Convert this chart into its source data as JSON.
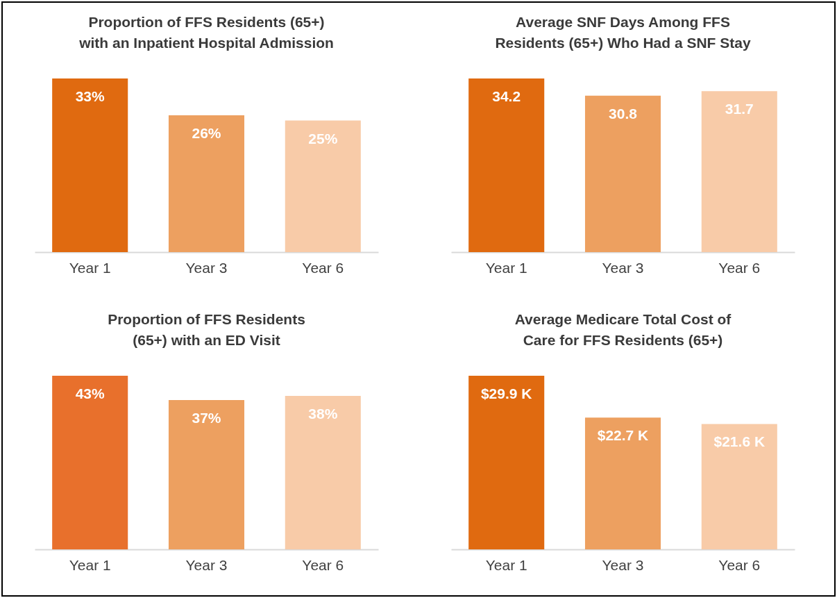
{
  "chart_data": [
    {
      "type": "bar",
      "title": "Proportion of FFS Residents (65+) with an Inpatient Hospital Admission",
      "categories": [
        "Year 1",
        "Year 3",
        "Year 6"
      ],
      "values": [
        33,
        26,
        25
      ],
      "colors": [
        "#e06a10",
        "#eda060",
        "#f8cba8"
      ],
      "value_labels": [
        "33%",
        "26%",
        "25%"
      ],
      "tick_labels": "x"
    },
    {
      "type": "bar",
      "title": "Average SNF Days Among FFS Residents (65+) Who Had a SNF Stay",
      "categories": [
        "Year 1",
        "Year 3",
        "Year 6"
      ],
      "values": [
        34.2,
        30.8,
        31.7
      ],
      "colors": [
        "#e06a10",
        "#eda060",
        "#f8cba8"
      ],
      "data_labels": true,
      "tick_labels": "x"
    },
    {
      "type": "bar",
      "title": "Proportion of FFS Residents (65+) with an ED Visit",
      "categories": [
        "Year 1",
        "Year 3",
        "Year 6"
      ],
      "values": [
        43,
        37,
        38
      ],
      "colors": [
        "#e8702c",
        "#eda060",
        "#f8cba8"
      ],
      "value_labels": [
        "43%",
        "37%",
        "38%"
      ],
      "tick_labels": "x"
    },
    {
      "type": "bar",
      "title": "Average Medicare Total Cost of Care for FFS Residents (65+)",
      "categories": [
        "Year 1",
        "Year 3",
        "Year 6"
      ],
      "values": [
        29.9,
        22.7,
        21.6
      ],
      "colors": [
        "#e06a10",
        "#eda060",
        "#f8cba8"
      ],
      "value_labels": [
        "$29.9 K",
        "$22.7 K",
        "$21.6 K"
      ],
      "tick_labels": "x"
    }
  ]
}
